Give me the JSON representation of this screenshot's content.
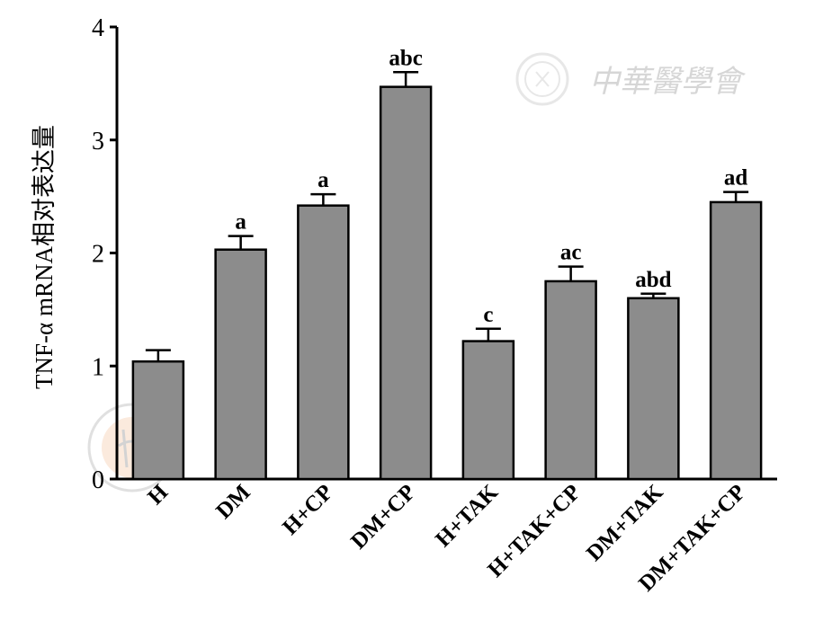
{
  "chart_data": {
    "type": "bar",
    "categories": [
      "H",
      "DM",
      "H+CP",
      "DM+CP",
      "H+TAK",
      "H+TAK+CP",
      "DM+TAK",
      "DM+TAK+CP"
    ],
    "values": [
      1.04,
      2.03,
      2.42,
      3.47,
      1.22,
      1.75,
      1.6,
      2.45
    ],
    "errors": [
      0.1,
      0.12,
      0.1,
      0.13,
      0.11,
      0.13,
      0.04,
      0.09
    ],
    "significance": [
      "",
      "a",
      "a",
      "abc",
      "c",
      "ac",
      "abd",
      "ad"
    ],
    "ylabel": "TNF-α mRNA相对表达量",
    "ylim": [
      0,
      4
    ],
    "yticks": [
      0,
      1,
      2,
      3,
      4
    ],
    "bar_color": "#8c8c8c",
    "grid": false
  },
  "watermark": {
    "text": "中華醫學會"
  }
}
